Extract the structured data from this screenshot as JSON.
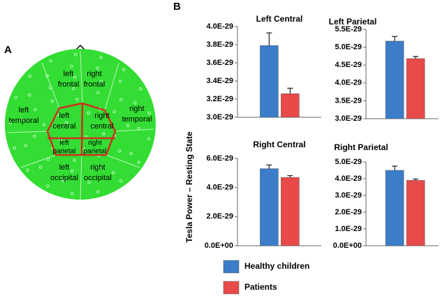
{
  "diagram": {
    "panel_label": "A",
    "regions": [
      {
        "lines": [
          "left",
          "frontal"
        ]
      },
      {
        "lines": [
          "right",
          "frontal"
        ]
      },
      {
        "lines": [
          "left",
          "temporal"
        ]
      },
      {
        "lines": [
          "right",
          "temporal"
        ]
      },
      {
        "lines": [
          "left",
          "central"
        ]
      },
      {
        "lines": [
          "right",
          "central"
        ]
      },
      {
        "lines": [
          "left",
          "parietal"
        ]
      },
      {
        "lines": [
          "right",
          "parietal"
        ]
      },
      {
        "lines": [
          "left",
          "occipital"
        ]
      },
      {
        "lines": [
          "right",
          "occipital"
        ]
      }
    ]
  },
  "panel_label": "B",
  "y_label": "Tesla Power – Resting State",
  "legend": {
    "entries": [
      {
        "name": "Healthy children",
        "color": "#3b7dc8"
      },
      {
        "name": "Patients",
        "color": "#e84a4a"
      }
    ]
  },
  "chart_data": [
    {
      "type": "bar",
      "title": "Left Central",
      "ylim": [
        3e-29,
        4e-29
      ],
      "yticks": [
        {
          "value": 3e-29,
          "label": "3.0E-29"
        },
        {
          "value": 3.2e-29,
          "label": "3.2E-29"
        },
        {
          "value": 3.4e-29,
          "label": "3.4E-29"
        },
        {
          "value": 3.6e-29,
          "label": "3.6E-29"
        },
        {
          "value": 3.8e-29,
          "label": "3.8E-29"
        },
        {
          "value": 4e-29,
          "label": "4.0E-29"
        }
      ],
      "series": [
        {
          "values": [
            3.79e-29
          ],
          "errors": [
            1.4e-30
          ]
        },
        {
          "values": [
            3.26e-29
          ],
          "errors": [
            6e-31
          ]
        }
      ]
    },
    {
      "type": "bar",
      "title": "Left Parietal",
      "ylim": [
        3e-29,
        5.5e-29
      ],
      "yticks": [
        {
          "value": 3e-29,
          "label": "3.0E-29"
        },
        {
          "value": 3.5e-29,
          "label": "3.5E-29"
        },
        {
          "value": 4e-29,
          "label": "4.0E-29"
        },
        {
          "value": 4.5e-29,
          "label": "4.5E-29"
        },
        {
          "value": 5e-29,
          "label": "5.0E-29"
        },
        {
          "value": 5.5e-29,
          "label": "5.5E-29"
        }
      ],
      "series": [
        {
          "values": [
            5.17e-29
          ],
          "errors": [
            1.3e-30
          ]
        },
        {
          "values": [
            4.68e-29
          ],
          "errors": [
            6e-31
          ]
        }
      ]
    },
    {
      "type": "bar",
      "title": "Right Central",
      "ylim": [
        0,
        6e-29
      ],
      "yticks": [
        {
          "value": 0,
          "label": "0.0E+00"
        },
        {
          "value": 2e-29,
          "label": "2.0E-29"
        },
        {
          "value": 4e-29,
          "label": "4.0E-29"
        },
        {
          "value": 6e-29,
          "label": "6.0E-29"
        }
      ],
      "series": [
        {
          "values": [
            5.3e-29
          ],
          "errors": [
            2.5e-30
          ]
        },
        {
          "values": [
            4.7e-29
          ],
          "errors": [
            1.2e-30
          ]
        }
      ]
    },
    {
      "type": "bar",
      "title": "Right Parietal",
      "ylim": [
        0,
        5e-29
      ],
      "yticks": [
        {
          "value": 0,
          "label": "0.0E+00"
        },
        {
          "value": 1e-29,
          "label": "1.0E-29"
        },
        {
          "value": 2e-29,
          "label": "2.0E-29"
        },
        {
          "value": 3e-29,
          "label": "3.0E-29"
        },
        {
          "value": 4e-29,
          "label": "4.0E-29"
        },
        {
          "value": 5e-29,
          "label": "5.0E-29"
        }
      ],
      "series": [
        {
          "values": [
            4.5e-29
          ],
          "errors": [
            2.5e-30
          ]
        },
        {
          "values": [
            3.9e-29
          ],
          "errors": [
            8e-31
          ]
        }
      ]
    }
  ]
}
